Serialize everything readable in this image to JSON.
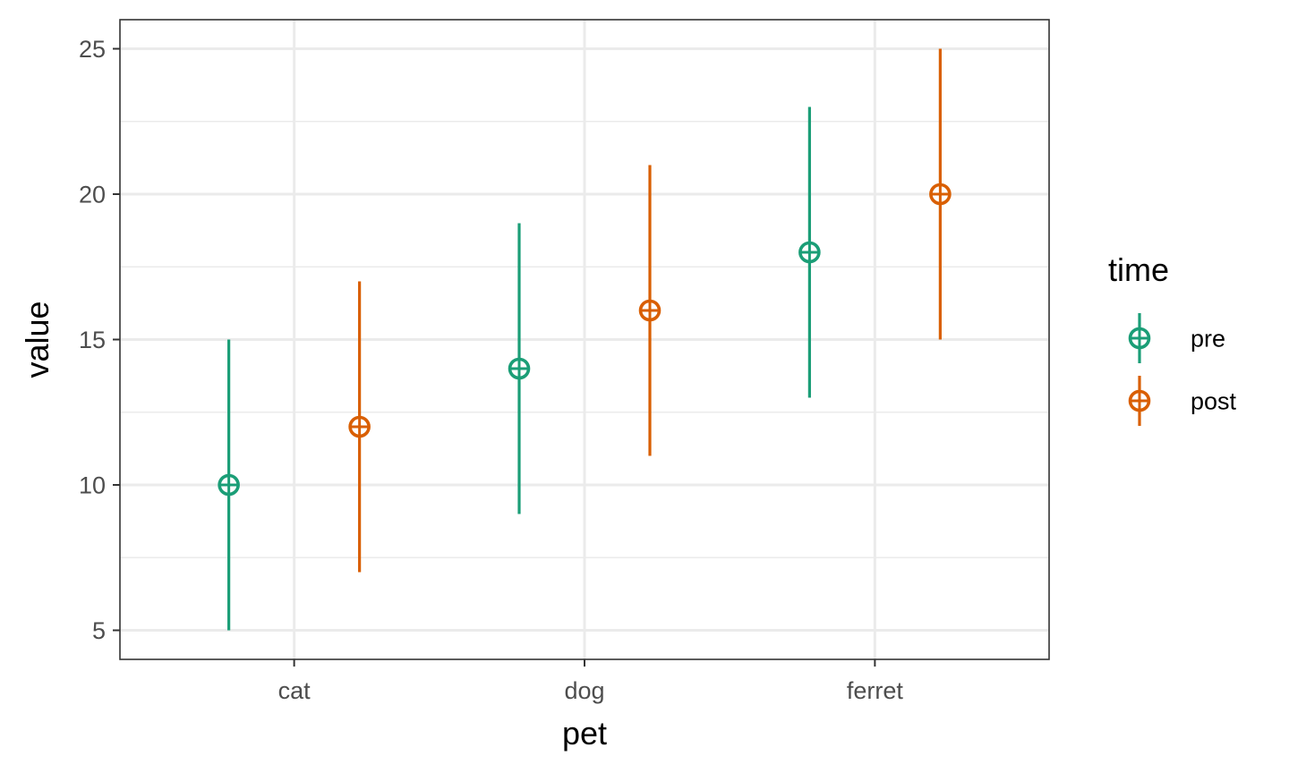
{
  "chart_data": {
    "type": "scatter",
    "subtype": "pointrange",
    "title": "",
    "xlabel": "pet",
    "ylabel": "value",
    "categories": [
      "cat",
      "dog",
      "ferret"
    ],
    "y_ticks": [
      "5",
      "10",
      "15",
      "20",
      "25"
    ],
    "ylim": [
      4,
      26
    ],
    "grid": true,
    "legend": {
      "title": "time",
      "position": "right"
    },
    "series": [
      {
        "name": "pre",
        "color": "#1B9E77",
        "values": [
          10,
          14,
          18
        ],
        "lower": [
          5,
          9,
          13
        ],
        "upper": [
          15,
          19,
          23
        ]
      },
      {
        "name": "post",
        "color": "#D95F02",
        "values": [
          12,
          16,
          20
        ],
        "lower": [
          7,
          11,
          15
        ],
        "upper": [
          17,
          21,
          25
        ]
      }
    ]
  }
}
